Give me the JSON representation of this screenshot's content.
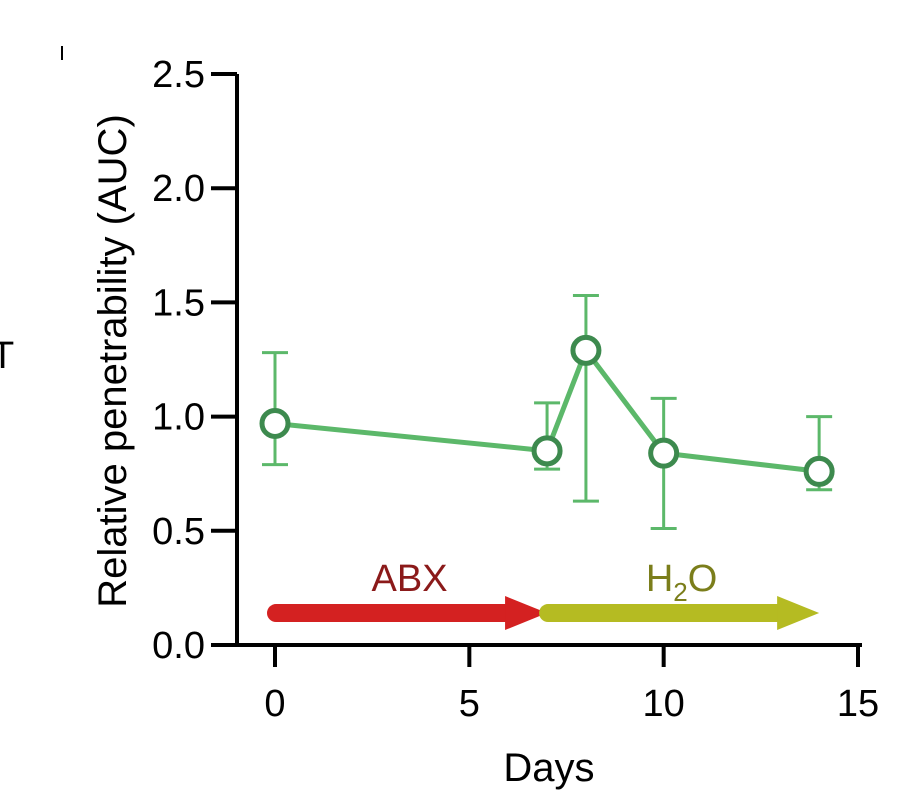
{
  "page": {
    "left_fragment_text": "T"
  },
  "chart_data": {
    "type": "line",
    "xlabel": "Days",
    "ylabel": "Relative penetrability (AUC)",
    "xlim": [
      0,
      15
    ],
    "ylim": [
      0,
      2.5
    ],
    "x_ticks": [
      0,
      5,
      10,
      15
    ],
    "y_ticks": [
      0.0,
      0.5,
      1.0,
      1.5,
      2.0,
      2.5
    ],
    "x_tick_labels": [
      "0",
      "5",
      "10",
      "15"
    ],
    "y_tick_labels": [
      "0.0",
      "0.5",
      "1.0",
      "1.5",
      "2.0",
      "2.5"
    ],
    "grid": false,
    "series": [
      {
        "color": "#5cb86a",
        "marker_color": "#3d8a4e",
        "points": [
          {
            "x": 0,
            "y": 0.97,
            "err_low": 0.79,
            "err_high": 1.28
          },
          {
            "x": 7,
            "y": 0.85,
            "err_low": 0.77,
            "err_high": 1.06
          },
          {
            "x": 8,
            "y": 1.29,
            "err_low": 0.63,
            "err_high": 1.53
          },
          {
            "x": 10,
            "y": 0.84,
            "err_low": 0.51,
            "err_high": 1.08
          },
          {
            "x": 14,
            "y": 0.76,
            "err_low": 0.68,
            "err_high": 1.0
          }
        ]
      }
    ],
    "annotations": [
      {
        "label": "ABX",
        "x_start": 0,
        "x_end": 7,
        "y": 0.14,
        "color": "#d42121",
        "label_color": "#8b1a1a"
      },
      {
        "label": "H",
        "subscript": "2",
        "suffix": "O",
        "x_start": 7,
        "x_end": 14,
        "y": 0.14,
        "color": "#b5bb22",
        "label_color": "#7b7e1b"
      }
    ]
  }
}
